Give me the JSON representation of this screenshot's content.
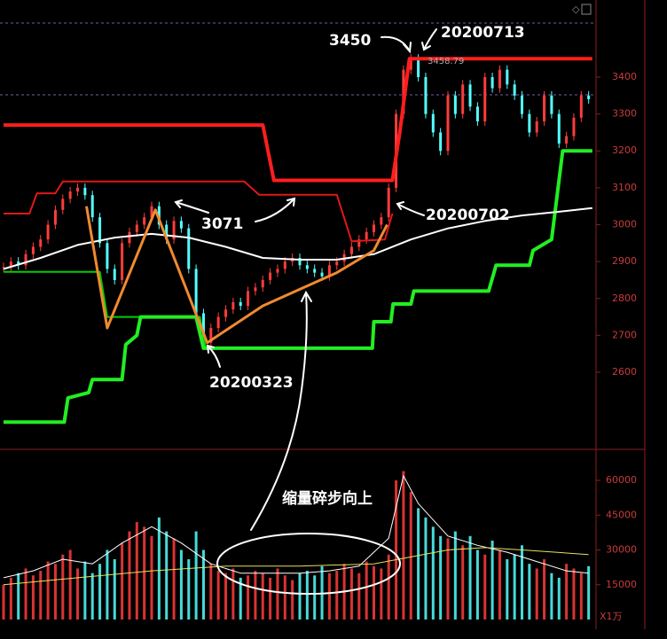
{
  "chart_data": [
    {
      "type": "candlestick",
      "values": [
        2885,
        2900,
        2890,
        2920,
        2940,
        2960,
        3000,
        3040,
        3070,
        3090,
        3100,
        3080,
        3020,
        2950,
        2880,
        2850,
        2950,
        2980,
        3000,
        3020,
        3050,
        3000,
        2960,
        3010,
        2990,
        2880,
        2760,
        2680,
        2720,
        2750,
        2770,
        2790,
        2780,
        2820,
        2830,
        2850,
        2870,
        2880,
        2900,
        2910,
        2890,
        2880,
        2870,
        2860,
        2890,
        2900,
        2920,
        2940,
        2960,
        2980,
        3000,
        3020,
        3100,
        3300,
        3420,
        3450,
        3400,
        3300,
        3250,
        3200,
        3350,
        3300,
        3380,
        3320,
        3280,
        3400,
        3370,
        3420,
        3380,
        3350,
        3300,
        3250,
        3280,
        3350,
        3300,
        3220,
        3240,
        3290,
        3350,
        3340
      ],
      "up_color": "#ff3c3c",
      "down_color": "#54ffff",
      "ylim": [
        2391,
        3609
      ],
      "yticks": [
        2600,
        2700,
        2800,
        2900,
        3000,
        3100,
        3200,
        3300,
        3400
      ],
      "series": [
        {
          "color": "#ff1e1e",
          "x": [
            0,
            35,
            36.5,
            52.5,
            53.5,
            54.8,
            79.5
          ],
          "values": [
            3270,
            3270,
            3120,
            3120,
            3250,
            3450,
            3450
          ]
        },
        {
          "color": "#e01818",
          "x": [
            0,
            3.5,
            4.5,
            7,
            8,
            32.5,
            34.5,
            45,
            47,
            51.5,
            52.5
          ],
          "values": [
            3030,
            3030,
            3085,
            3085,
            3117,
            3117,
            3081,
            3081,
            2955,
            2960,
            3030
          ]
        },
        {
          "color": "#00d000",
          "x": [
            0,
            13,
            14,
            26.5,
            27.3,
            49.8
          ],
          "values": [
            2872,
            2872,
            2750,
            2750,
            2665,
            2665
          ]
        },
        {
          "color": "#22ee22",
          "x": [
            0,
            8.2,
            8.7,
            11.5,
            12,
            16,
            16.5,
            18,
            18.5,
            26,
            27,
            49.8,
            50,
            52.3,
            52.6,
            55,
            55.4,
            65.5,
            66.5,
            71,
            71.5,
            74,
            75.5,
            79.5
          ],
          "values": [
            2465,
            2465,
            2530,
            2545,
            2580,
            2580,
            2675,
            2700,
            2750,
            2750,
            2665,
            2665,
            2737,
            2737,
            2785,
            2785,
            2820,
            2820,
            2890,
            2890,
            2930,
            2960,
            3200,
            3200
          ]
        },
        {
          "color": "#ffffff",
          "x": [
            0,
            5,
            10,
            15,
            20,
            25,
            30,
            35,
            40,
            45,
            50,
            55,
            60,
            65,
            70,
            75,
            79.5
          ],
          "values": [
            2880,
            2910,
            2945,
            2965,
            2975,
            2965,
            2940,
            2910,
            2905,
            2905,
            2920,
            2960,
            2990,
            3010,
            3025,
            3035,
            3045
          ]
        },
        {
          "color": "#f08a30",
          "x": [
            11.2,
            14,
            20.5,
            27.5,
            35,
            45,
            50,
            51.8
          ],
          "values": [
            3050,
            2720,
            3040,
            2680,
            2780,
            2870,
            2930,
            3000
          ]
        }
      ],
      "annotations": [
        "3450",
        "20200713",
        "3458.79",
        "3071",
        "20200702",
        "20200323"
      ]
    },
    {
      "type": "bar",
      "values": [
        15000,
        18000,
        20000,
        22000,
        19000,
        21000,
        25000,
        24000,
        28000,
        30000,
        22000,
        25000,
        20000,
        24000,
        30000,
        26000,
        33000,
        38000,
        42000,
        40000,
        36000,
        44000,
        38000,
        35000,
        30000,
        26000,
        38000,
        30000,
        24000,
        21000,
        20000,
        22000,
        18000,
        19000,
        21000,
        20000,
        18000,
        22000,
        19000,
        17000,
        20000,
        21000,
        19000,
        23000,
        20000,
        21000,
        24000,
        22000,
        20000,
        25000,
        23000,
        22000,
        28000,
        60000,
        64000,
        55000,
        48000,
        44000,
        40000,
        36000,
        35000,
        38000,
        32000,
        36000,
        30000,
        28000,
        34000,
        30000,
        26000,
        28000,
        32000,
        24000,
        22000,
        26000,
        20000,
        18000,
        24000,
        22000,
        20000,
        23000
      ],
      "ylim": [
        0,
        73000
      ],
      "yticks": [
        15000,
        30000,
        45000,
        60000
      ],
      "series": [
        {
          "color": "#ffffff",
          "x": [
            0,
            4,
            8,
            12,
            16,
            20,
            24,
            28,
            32,
            36,
            40,
            44,
            48,
            52,
            54,
            56,
            60,
            64,
            68,
            72,
            76,
            79
          ],
          "values": [
            18000,
            21000,
            26000,
            24000,
            33000,
            40000,
            33000,
            24000,
            20000,
            20000,
            20000,
            21000,
            23000,
            35000,
            62000,
            50000,
            36000,
            32000,
            29000,
            25000,
            21000,
            20000
          ]
        },
        {
          "color": "#e8e060",
          "x": [
            0,
            10,
            20,
            30,
            40,
            50,
            55,
            60,
            65,
            70,
            79
          ],
          "values": [
            15000,
            18000,
            21000,
            23000,
            23000,
            24000,
            27000,
            30000,
            31000,
            30000,
            28000
          ]
        }
      ],
      "annotation": "缩量碎步向上",
      "unit_label": "X1万"
    }
  ]
}
